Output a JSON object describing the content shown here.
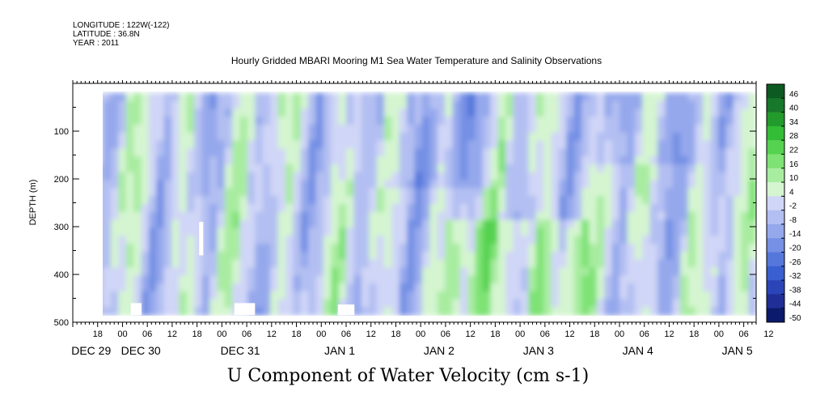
{
  "header": {
    "longitude": "LONGITUDE : 122W(-122)",
    "latitude": "LATITUDE : 36.8N",
    "year": "YEAR : 2011"
  },
  "chart_data": {
    "type": "heatmap",
    "title": "Hourly Gridded MBARI Mooring M1 Sea Water Temperature and Salinity Observations",
    "subtitle": "U Component of Water Velocity (cm s-1)",
    "ylabel": "DEPTH (m)",
    "ylim": [
      500,
      0
    ],
    "data_depth_range": [
      20,
      485
    ],
    "yticks": [
      100,
      200,
      300,
      400,
      500
    ],
    "x_hours_labels": [
      "18",
      "00",
      "06",
      "12",
      "18",
      "00",
      "06",
      "12",
      "18",
      "00",
      "06",
      "12",
      "18",
      "00",
      "06",
      "12",
      "18",
      "00",
      "06",
      "12",
      "18",
      "00",
      "06",
      "12",
      "18",
      "00",
      "06",
      "12"
    ],
    "x_day_labels": [
      "DEC 29",
      "DEC 30",
      "DEC 31",
      "JAN  1",
      "JAN  2",
      "JAN  3",
      "JAN  4",
      "JAN  5"
    ],
    "x_day_positions_hours": [
      -6,
      6,
      30,
      54,
      78,
      102,
      126,
      150
    ],
    "x_range_hours": [
      -12,
      153
    ],
    "data_x_range_hours": [
      -12,
      153
    ],
    "colorbar": {
      "levels": [
        -50,
        -44,
        -38,
        -32,
        -26,
        -20,
        -14,
        -8,
        -2,
        4,
        10,
        16,
        22,
        28,
        34,
        40,
        46,
        52
      ],
      "tick_labels": [
        "46",
        "40",
        "34",
        "28",
        "22",
        "16",
        "10",
        "4",
        "-2",
        "-8",
        "-14",
        "-20",
        "-26",
        "-32",
        "-38",
        "-44",
        "-50"
      ],
      "colors": [
        "#0c1a6b",
        "#1f2f96",
        "#2b45b8",
        "#3a5fd0",
        "#5577dc",
        "#7590e4",
        "#95a8ec",
        "#b3bff2",
        "#d0d6f7",
        "#d4f5d0",
        "#a8eca0",
        "#7ee274",
        "#55d24f",
        "#33bd37",
        "#239a2c",
        "#17772a",
        "#0d5a22"
      ]
    },
    "grid": false,
    "legend_placement": "right"
  }
}
